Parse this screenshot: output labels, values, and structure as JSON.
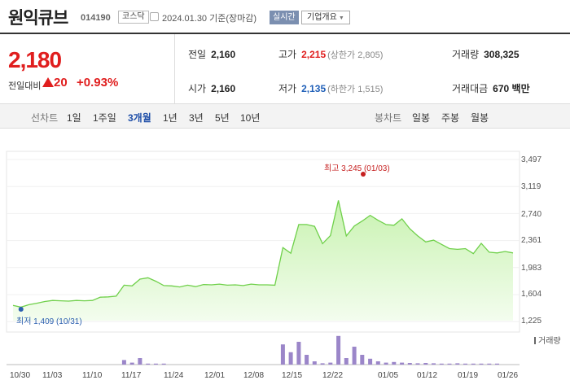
{
  "header": {
    "name": "원익큐브",
    "code": "014190",
    "market": "코스닥",
    "date_text": "2024.01.30  기준(장마감)",
    "realtime_label": "실시간",
    "company_info_label": "기업개요"
  },
  "quote": {
    "price": "2,180",
    "change_label": "전일대비",
    "change_value": "20",
    "change_pct": "+0.93%",
    "prev_close_label": "전일",
    "prev_close": "2,160",
    "high_label": "고가",
    "high": "2,215",
    "upper_limit": "(상한가 2,805)",
    "volume_label": "거래량",
    "volume": "308,325",
    "open_label": "시가",
    "open": "2,160",
    "low_label": "저가",
    "low": "2,135",
    "lower_limit": "(하한가 1,515)",
    "amount_label": "거래대금",
    "amount": "670 백만"
  },
  "periods": {
    "line_label": "선차트",
    "line_items": [
      "1일",
      "1주일",
      "3개월",
      "1년",
      "3년",
      "5년",
      "10년"
    ],
    "active": "3개월",
    "candle_label": "봉차트",
    "candle_items": [
      "일봉",
      "주봉",
      "월봉"
    ]
  },
  "colors": {
    "up": "#e01e1e",
    "down": "#1f5fb8",
    "line": "#6fd04a",
    "fill": "#d9f7c9",
    "volume": "#9b86c9"
  },
  "chart_data": {
    "type": "area",
    "y_ticks": [
      "3,497",
      "3,119",
      "2,740",
      "2,361",
      "1,983",
      "1,604",
      "1,225"
    ],
    "ylim": [
      1225,
      3497
    ],
    "x_ticks": [
      "10/30",
      "11/03",
      "11/10",
      "11/17",
      "11/24",
      "12/01",
      "12/08",
      "12/15",
      "12/22",
      "01/05",
      "01/12",
      "01/19",
      "01/26"
    ],
    "high_annotation": "최고 3,245 (01/03)",
    "low_annotation": "최저 1,409 (10/31)",
    "volume_label": "거래량",
    "series": [
      {
        "values": [
          1440,
          1415,
          1450,
          1470,
          1495,
          1510,
          1505,
          1500,
          1510,
          1505,
          1510,
          1555,
          1560,
          1570,
          1725,
          1715,
          1810,
          1830,
          1780,
          1720,
          1715,
          1700,
          1725,
          1705,
          1735,
          1730,
          1740,
          1725,
          1730,
          1720,
          1740,
          1730,
          1730,
          1725,
          2255,
          2175,
          2580,
          2580,
          2555,
          2310,
          2425,
          2920,
          2420,
          2560,
          2630,
          2710,
          2640,
          2580,
          2570,
          2660,
          2520,
          2420,
          2335,
          2360,
          2300,
          2240,
          2230,
          2240,
          2170,
          2315,
          2190,
          2180,
          2200,
          2180
        ]
      }
    ],
    "volume": [
      0,
      0,
      0,
      0,
      0,
      0,
      0,
      0,
      0,
      0,
      0,
      0,
      0,
      0,
      14,
      6,
      20,
      3,
      3,
      3,
      0,
      0,
      0,
      0,
      0,
      0,
      0,
      0,
      0,
      0,
      0,
      0,
      0,
      0,
      62,
      38,
      70,
      30,
      10,
      4,
      6,
      88,
      20,
      55,
      30,
      18,
      10,
      6,
      8,
      6,
      5,
      4,
      5,
      4,
      3,
      3,
      4,
      3,
      3,
      3,
      3,
      3,
      0,
      0
    ]
  }
}
